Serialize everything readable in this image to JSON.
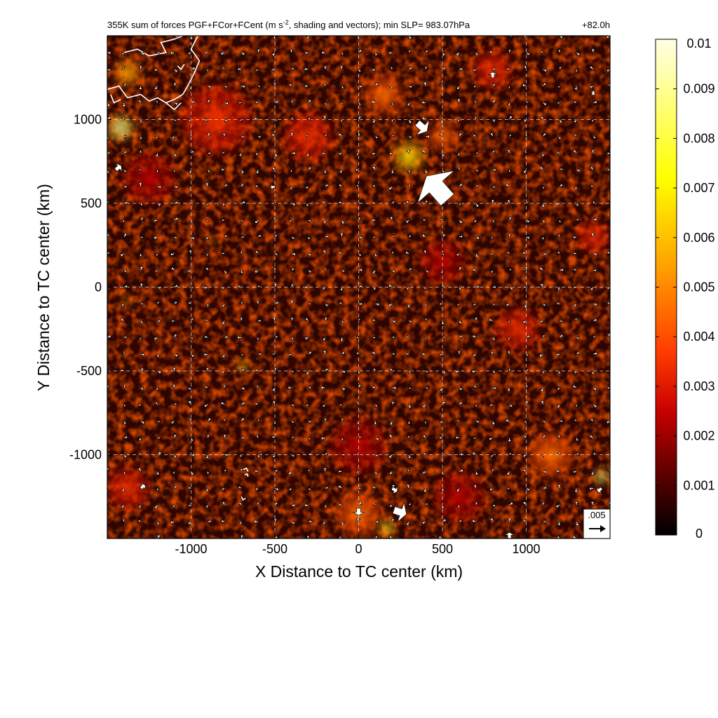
{
  "chart_data": {
    "type": "heatmap",
    "title": "355K sum of forces PGF+FCor+FCent (m s-2, shading and vectors); min SLP= 983.07hPa",
    "title_main": "355K sum of forces PGF+FCor+FCent (m s",
    "title_superscript": "-2",
    "title_rest": ", shading and vectors); min SLP= 983.07hPa",
    "forecast_hour": "+82.0h",
    "xlabel": "X Distance to TC center (km)",
    "ylabel": "Y Distance to TC center (km)",
    "xlim": [
      -1500,
      1500
    ],
    "ylim": [
      -1500,
      1500
    ],
    "x_ticks": [
      -1000,
      -500,
      0,
      500,
      1000
    ],
    "y_ticks": [
      -1000,
      -500,
      0,
      500,
      1000
    ],
    "x_tick_labels": [
      "-1000",
      "-500",
      "0",
      "500",
      "1000"
    ],
    "y_tick_labels": [
      "-1000",
      "-500",
      "0",
      "500",
      "1000"
    ],
    "grid": true,
    "colorbar": {
      "min": 0,
      "max": 0.01,
      "tick_values": [
        0,
        0.001,
        0.002,
        0.003,
        0.004,
        0.005,
        0.006,
        0.007,
        0.008,
        0.009,
        0.01
      ],
      "tick_labels": [
        "0",
        "0.001",
        "0.002",
        "0.003",
        "0.004",
        "0.005",
        "0.006",
        "0.007",
        "0.008",
        "0.009",
        "0.01"
      ],
      "colors": [
        "#000000",
        "#5a0000",
        "#c80000",
        "#ff3c00",
        "#ffa500",
        "#ffff00",
        "#ffffe6"
      ]
    },
    "reference_vector": {
      "label": ".005",
      "value": 0.005
    },
    "background_color": "#2e0500",
    "coastline_color": "#ffffff",
    "hotspots": [
      {
        "x": 300,
        "y": 780,
        "value": 0.006,
        "radius": 90
      },
      {
        "x": 500,
        "y": 900,
        "value": 0.004,
        "radius": 80
      },
      {
        "x": -1420,
        "y": 950,
        "value": 0.008,
        "radius": 70
      },
      {
        "x": -1380,
        "y": 1280,
        "value": 0.005,
        "radius": 80
      },
      {
        "x": 150,
        "y": 1150,
        "value": 0.004,
        "radius": 110
      },
      {
        "x": -850,
        "y": 1000,
        "value": 0.003,
        "radius": 200
      },
      {
        "x": 800,
        "y": 1300,
        "value": 0.003,
        "radius": 110
      },
      {
        "x": 1400,
        "y": 300,
        "value": 0.003,
        "radius": 90
      },
      {
        "x": 950,
        "y": -250,
        "value": 0.003,
        "radius": 120
      },
      {
        "x": 1150,
        "y": -1000,
        "value": 0.004,
        "radius": 130
      },
      {
        "x": 1450,
        "y": -1130,
        "value": 0.008,
        "radius": 40
      },
      {
        "x": 0,
        "y": -1350,
        "value": 0.004,
        "radius": 130
      },
      {
        "x": 170,
        "y": -1440,
        "value": 0.007,
        "radius": 40
      },
      {
        "x": -690,
        "y": -470,
        "value": 0.006,
        "radius": 30
      },
      {
        "x": -1380,
        "y": -1200,
        "value": 0.003,
        "radius": 120
      },
      {
        "x": -880,
        "y": 280,
        "value": 0.005,
        "radius": 25
      },
      {
        "x": -1380,
        "y": -85,
        "value": 0.005,
        "radius": 25
      },
      {
        "x": 500,
        "y": 150,
        "value": 0.002,
        "radius": 130
      },
      {
        "x": 0,
        "y": -950,
        "value": 0.002,
        "radius": 160
      },
      {
        "x": -300,
        "y": 900,
        "value": 0.003,
        "radius": 140
      },
      {
        "x": 600,
        "y": -1250,
        "value": 0.002,
        "radius": 150
      },
      {
        "x": -1250,
        "y": 650,
        "value": 0.002,
        "radius": 150
      }
    ],
    "vectors_small": {
      "grid_x_start": -1500,
      "grid_x_step": 100,
      "grid_y_start": -1500,
      "grid_y_step": 100,
      "typical_magnitude": 0.0015
    },
    "vectors_large": [
      {
        "x": 530,
        "y": 520,
        "u": -0.0075,
        "v": 0.0085
      },
      {
        "x": 350,
        "y": 980,
        "u": 0.0035,
        "v": -0.003
      },
      {
        "x": 210,
        "y": -1330,
        "u": 0.0045,
        "v": -0.0015
      },
      {
        "x": -1450,
        "y": 700,
        "u": 0.002,
        "v": 0.0015
      },
      {
        "x": 800,
        "y": 1250,
        "u": 0.0,
        "v": 0.002
      },
      {
        "x": 1400,
        "y": 1170,
        "u": 0.0,
        "v": -0.0015
      },
      {
        "x": -500,
        "y": 600,
        "u": -0.0015,
        "v": -0.0003
      },
      {
        "x": 0,
        "y": -1320,
        "u": 0.0,
        "v": -0.0025
      },
      {
        "x": 200,
        "y": -1200,
        "u": 0.0018,
        "v": -0.0012
      },
      {
        "x": -1300,
        "y": -1200,
        "u": 0.0015,
        "v": 0.0012
      },
      {
        "x": 1450,
        "y": -1200,
        "u": -0.0015,
        "v": -0.0012
      },
      {
        "x": 900,
        "y": -1500,
        "u": 0.0,
        "v": 0.0022
      }
    ],
    "coastlines": [
      [
        [
          -1400,
          1400
        ],
        [
          -1320,
          1420
        ],
        [
          -1250,
          1380
        ],
        [
          -1150,
          1400
        ],
        [
          -1180,
          1460
        ],
        [
          -1100,
          1480
        ],
        [
          -1050,
          1500
        ]
      ],
      [
        [
          -1500,
          1180
        ],
        [
          -1430,
          1200
        ],
        [
          -1380,
          1130
        ],
        [
          -1300,
          1150
        ],
        [
          -1250,
          1110
        ],
        [
          -1200,
          1130
        ],
        [
          -1150,
          1100
        ],
        [
          -1100,
          1120
        ],
        [
          -1050,
          1150
        ],
        [
          -1020,
          1200
        ],
        [
          -980,
          1280
        ],
        [
          -950,
          1350
        ],
        [
          -1000,
          1420
        ],
        [
          -960,
          1500
        ]
      ],
      [
        [
          -1150,
          1100
        ],
        [
          -1100,
          1060
        ],
        [
          -1060,
          1100
        ]
      ],
      [
        [
          -1420,
          1120
        ],
        [
          -1460,
          1100
        ],
        [
          -1480,
          1150
        ]
      ],
      [
        [
          -1080,
          1320
        ],
        [
          -1060,
          1300
        ],
        [
          -1040,
          1330
        ]
      ],
      [
        [
          -690,
          -1090
        ],
        [
          -670,
          -1080
        ],
        [
          -660,
          -1100
        ]
      ],
      [
        [
          -680,
          -1120
        ],
        [
          -665,
          -1115
        ],
        [
          -660,
          -1130
        ]
      ],
      [
        [
          -700,
          -1250
        ],
        [
          -690,
          -1270
        ],
        [
          -675,
          -1260
        ]
      ]
    ]
  }
}
